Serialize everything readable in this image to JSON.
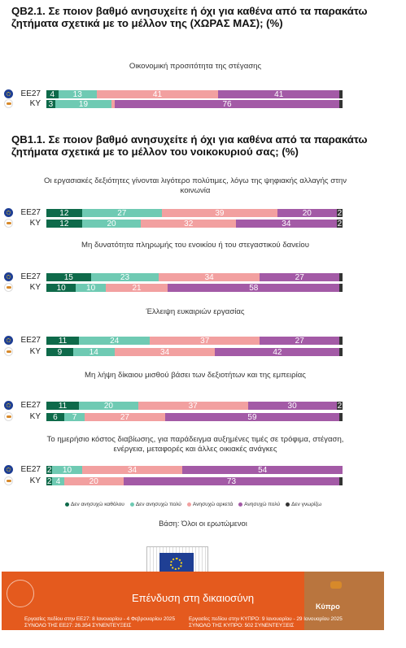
{
  "colors": {
    "cat1": "#0e6a4a",
    "cat2": "#6fcab3",
    "cat3": "#f2a0a0",
    "cat4": "#a35aa6",
    "cat5": "#333333",
    "footer": "#e45a1e"
  },
  "q1": {
    "title": "QB2.1. Σε ποιον βαθμό ανησυχείτε ή όχι για καθένα από τα παρακάτω ζητήματα σχετικά με το μέλλον της (ΧΩΡΑΣ ΜΑΣ); (%)"
  },
  "q2": {
    "title": "QB1.1. Σε ποιον βαθμό ανησυχείτε ή όχι για καθένα από τα παρακάτω ζητήματα σχετικά με το μέλλον του νοικοκυριού σας; (%)"
  },
  "chart_data": {
    "type": "bar",
    "stacked": true,
    "orientation": "horizontal",
    "legend_position": "bottom",
    "categories_legend": [
      "Δεν ανησυχώ καθόλου",
      "Δεν ανησυχώ πολύ",
      "Ανησυχώ αρκετά",
      "Ανησυχώ πολύ",
      "Δεν γνωρίζω"
    ],
    "items": [
      {
        "label": "Οικονομική προσιτότητα της στέγασης",
        "rows": [
          {
            "code": "EE27",
            "values": [
              4,
              13,
              41,
              41,
              1
            ],
            "labels": [
              "4",
              "13",
              "41",
              "41",
              ""
            ]
          },
          {
            "code": "KY",
            "values": [
              3,
              19,
              1,
              76,
              1
            ],
            "labels": [
              "3",
              "19",
              "",
              "76",
              ""
            ]
          }
        ]
      },
      {
        "label": "Οι εργασιακές δεξιότητες γίνονται λιγότερο πολύτιμες, λόγω της ψηφιακής αλλαγής στην κοινωνία",
        "rows": [
          {
            "code": "EE27",
            "values": [
              12,
              27,
              39,
              20,
              2
            ],
            "labels": [
              "12",
              "27",
              "39",
              "20",
              "2"
            ]
          },
          {
            "code": "KY",
            "values": [
              12,
              20,
              32,
              34,
              2
            ],
            "labels": [
              "12",
              "20",
              "32",
              "34",
              "2"
            ]
          }
        ]
      },
      {
        "label": "Μη δυνατότητα πληρωμής του ενοικίου ή του στεγαστικού δανείου",
        "rows": [
          {
            "code": "EE27",
            "values": [
              15,
              23,
              34,
              27,
              1
            ],
            "labels": [
              "15",
              "23",
              "34",
              "27",
              ""
            ]
          },
          {
            "code": "KY",
            "values": [
              10,
              10,
              21,
              58,
              1
            ],
            "labels": [
              "10",
              "10",
              "21",
              "58",
              ""
            ]
          }
        ]
      },
      {
        "label": "Έλλειψη ευκαιριών εργασίας",
        "rows": [
          {
            "code": "EE27",
            "values": [
              11,
              24,
              37,
              27,
              1
            ],
            "labels": [
              "11",
              "24",
              "37",
              "27",
              ""
            ]
          },
          {
            "code": "KY",
            "values": [
              9,
              14,
              34,
              42,
              1
            ],
            "labels": [
              "9",
              "14",
              "34",
              "42",
              ""
            ]
          }
        ]
      },
      {
        "label": "Μη λήψη δίκαιου μισθού βάσει των δεξιοτήτων και της εμπειρίας",
        "rows": [
          {
            "code": "EE27",
            "values": [
              11,
              20,
              37,
              30,
              2
            ],
            "labels": [
              "11",
              "20",
              "37",
              "30",
              "2"
            ]
          },
          {
            "code": "KY",
            "values": [
              6,
              7,
              27,
              59,
              1
            ],
            "labels": [
              "6",
              "7",
              "27",
              "59",
              ""
            ]
          }
        ]
      },
      {
        "label": "Το ημερήσιο κόστος διαβίωσης, για παράδειγμα αυξημένες τιμές σε τρόφιμα, στέγαση, ενέργεια, μεταφορές και άλλες οικιακές ανάγκες",
        "rows": [
          {
            "code": "EE27",
            "values": [
              2,
              10,
              34,
              54,
              0
            ],
            "labels": [
              "2",
              "10",
              "34",
              "54",
              ""
            ]
          },
          {
            "code": "KY",
            "values": [
              2,
              4,
              20,
              73,
              1
            ],
            "labels": [
              "2",
              "4",
              "20",
              "73",
              ""
            ]
          }
        ]
      }
    ]
  },
  "base_text": "Βάση: Όλοι οι ερωτώμενοι",
  "ec_logo": {
    "line1": "European",
    "line2": "Commission"
  },
  "footer": {
    "title": "Επένδυση στη δικαιοσύνη",
    "note_left_1": "Εργασίες πεδίου στην ΕΕ27: 8 Ιανουαρίου - 4 Φεβρουαρίου 2025",
    "note_left_2": "ΣΥΝΟΛΟ ΤΗΣ ΕΕ27: 26.354 ΣΥΝΕΝΤΕΥΞΕΙΣ",
    "note_right_1": "Εργασίες πεδίου στην ΚΥΠΡΟ: 9 Ιανουαρίου - 29 Ιανουαρίου 2025",
    "note_right_2": "ΣΥΝΟΛΟ ΤΗΣ ΚΥΠΡΟ: 502 ΣΥΝΕΝΤΕΥΞΕΙΣ",
    "country": "Κύπρο"
  }
}
